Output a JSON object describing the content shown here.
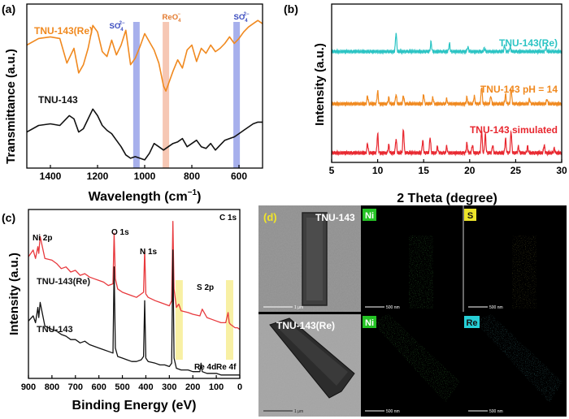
{
  "panels": {
    "a": {
      "letter": "(a)",
      "xlabel": "Wavelength (cm",
      "xlabel_sup": "−1",
      "xlabel_close": ")",
      "ylabel": "Transmittance (a.u.)",
      "xticks": [
        "1400",
        "1200",
        "1000",
        "800",
        "600"
      ],
      "band_labels": {
        "so4_left": "SO",
        "reo4": "ReO",
        "so4_right": "SO"
      },
      "band_subs": {
        "so4_left": "4",
        "reo4": "4",
        "so4_right": "4"
      },
      "band_sups": {
        "so4_left": "2−",
        "reo4": "−",
        "so4_right": "2−"
      },
      "series_labels": {
        "re": "TNU-143(Re)",
        "base": "TNU-143"
      }
    },
    "b": {
      "letter": "(b)",
      "xlabel": "2 Theta (degree)",
      "ylabel": "Intensity (a.u.)",
      "xticks": [
        "5",
        "10",
        "15",
        "20",
        "25",
        "30"
      ],
      "series_labels": {
        "re": "TNU-143(Re)",
        "ph": "TNU-143 pH = 14",
        "sim": "TNU-143 simulated"
      }
    },
    "c": {
      "letter": "(c)",
      "xlabel": "Binding Energy (eV)",
      "ylabel": "Intensity (a.u.)",
      "xticks": [
        "900",
        "800",
        "700",
        "600",
        "500",
        "400",
        "300",
        "200",
        "100",
        "0"
      ],
      "peak_labels": {
        "ni": "Ni 2p",
        "o": "O 1s",
        "n": "N 1s",
        "c": "C 1s",
        "s": "S 2p",
        "re4d": "Re 4d",
        "re4f": "Re 4f"
      },
      "series_labels": {
        "re": "TNU-143(Re)",
        "base": "TNU-143"
      }
    },
    "d": {
      "letter": "(d)",
      "sample_top": "TNU-143",
      "sample_bottom": "TNU-143(Re)",
      "map_tags": {
        "ni_top": "Ni",
        "s_top": "S",
        "ni_bottom": "Ni",
        "re_bottom": "Re"
      },
      "scale_labels": {
        "tem_top": "1 μm",
        "map1": "500 nm",
        "map2": "500 nm",
        "tem_bottom": "1 μm",
        "map3": "500 nm",
        "map4": "500 nm"
      }
    }
  },
  "chart_data": [
    {
      "panel": "a",
      "type": "line",
      "title": "",
      "xlabel": "Wavelength (cm−1)",
      "ylabel": "Transmittance (a.u.)",
      "xlim": [
        1500,
        500
      ],
      "ylim": [
        0,
        10
      ],
      "x_reversed": true,
      "bands": [
        {
          "label": "SO4 2−",
          "x": 1035,
          "color": "#8a95e6"
        },
        {
          "label": "ReO4 −",
          "x": 910,
          "color": "#f3b49b"
        },
        {
          "label": "SO4 2−",
          "x": 610,
          "color": "#8a95e6"
        }
      ],
      "series": [
        {
          "name": "TNU-143(Re)",
          "color": "#f0891f",
          "x": [
            1500,
            1450,
            1400,
            1360,
            1330,
            1300,
            1280,
            1260,
            1240,
            1220,
            1200,
            1180,
            1160,
            1140,
            1120,
            1100,
            1080,
            1060,
            1040,
            1020,
            1000,
            980,
            960,
            940,
            920,
            910,
            900,
            880,
            860,
            840,
            820,
            800,
            780,
            760,
            740,
            720,
            700,
            680,
            660,
            640,
            620,
            600,
            580,
            560,
            540,
            520,
            500
          ],
          "y": [
            7.5,
            7.9,
            8.0,
            7.9,
            6.4,
            7.3,
            5.8,
            6.3,
            7.3,
            8.7,
            8.3,
            7.1,
            6.8,
            7.8,
            6.9,
            7.5,
            8.4,
            6.3,
            6.7,
            7.4,
            8.2,
            7.7,
            7.2,
            6.4,
            5.0,
            4.7,
            5.1,
            5.9,
            6.6,
            6.1,
            7.2,
            7.5,
            6.5,
            7.3,
            7.0,
            7.5,
            7.1,
            7.3,
            7.6,
            8.0,
            7.6,
            7.9,
            8.3,
            8.6,
            8.8,
            9.0,
            8.8
          ]
        },
        {
          "name": "TNU-143",
          "color": "#111111",
          "x": [
            1500,
            1450,
            1400,
            1360,
            1320,
            1300,
            1280,
            1260,
            1240,
            1220,
            1200,
            1180,
            1160,
            1140,
            1120,
            1100,
            1080,
            1060,
            1040,
            1020,
            1000,
            980,
            960,
            940,
            920,
            900,
            880,
            860,
            840,
            820,
            800,
            780,
            760,
            740,
            720,
            700,
            680,
            660,
            640,
            620,
            600,
            580,
            560,
            540,
            520,
            500
          ],
          "y": [
            2.2,
            2.6,
            2.7,
            2.6,
            3.2,
            3.0,
            2.2,
            2.4,
            3.0,
            3.6,
            3.2,
            2.6,
            2.3,
            2.1,
            1.7,
            1.3,
            0.8,
            0.6,
            0.7,
            0.6,
            0.5,
            0.9,
            1.5,
            1.3,
            1.1,
            1.3,
            1.5,
            1.6,
            1.8,
            1.3,
            1.5,
            1.7,
            1.3,
            1.2,
            1.5,
            1.1,
            1.4,
            1.7,
            1.8,
            1.9,
            2.1,
            2.3,
            2.5,
            2.7,
            2.8,
            2.8
          ]
        }
      ]
    },
    {
      "panel": "b",
      "type": "line",
      "title": "",
      "xlabel": "2 Theta (degree)",
      "ylabel": "Intensity (a.u.)",
      "xlim": [
        5,
        30
      ],
      "ylim": [
        0,
        10
      ],
      "series": [
        {
          "name": "TNU-143(Re)",
          "color": "#2bc4c4",
          "baseline": 7.0,
          "peaks": [
            [
              12.0,
              1.2
            ],
            [
              15.8,
              0.6
            ],
            [
              17.8,
              0.5
            ],
            [
              19.8,
              0.3
            ],
            [
              21.6,
              0.2
            ],
            [
              23.8,
              0.4
            ],
            [
              24.4,
              0.3
            ],
            [
              28.3,
              0.3
            ]
          ]
        },
        {
          "name": "TNU-143 pH = 14",
          "color": "#f0891f",
          "baseline": 3.7,
          "peaks": [
            [
              8.9,
              0.5
            ],
            [
              10.0,
              0.8
            ],
            [
              11.2,
              0.4
            ],
            [
              12.0,
              0.6
            ],
            [
              12.8,
              0.5
            ],
            [
              15.0,
              0.6
            ],
            [
              16.0,
              0.4
            ],
            [
              17.5,
              0.3
            ],
            [
              19.7,
              0.4
            ],
            [
              20.5,
              0.5
            ],
            [
              21.3,
              1.1
            ],
            [
              22.3,
              0.5
            ],
            [
              23.9,
              0.6
            ],
            [
              24.5,
              1.0
            ],
            [
              26.5,
              0.3
            ],
            [
              28.4,
              0.3
            ]
          ]
        },
        {
          "name": "TNU-143 simulated",
          "color": "#e8272f",
          "baseline": 0.6,
          "peaks": [
            [
              8.9,
              0.6
            ],
            [
              10.0,
              1.2
            ],
            [
              11.2,
              0.5
            ],
            [
              12.0,
              0.9
            ],
            [
              12.8,
              1.5
            ],
            [
              14.9,
              0.8
            ],
            [
              15.7,
              1.0
            ],
            [
              16.5,
              0.4
            ],
            [
              17.5,
              0.4
            ],
            [
              19.7,
              0.6
            ],
            [
              20.3,
              0.5
            ],
            [
              21.3,
              1.4
            ],
            [
              21.7,
              1.2
            ],
            [
              22.5,
              0.5
            ],
            [
              23.9,
              0.9
            ],
            [
              24.5,
              1.4
            ],
            [
              25.3,
              0.4
            ],
            [
              26.3,
              0.4
            ],
            [
              28.1,
              0.5
            ],
            [
              29.2,
              0.3
            ]
          ]
        }
      ]
    },
    {
      "panel": "c",
      "type": "line",
      "title": "",
      "xlabel": "Binding Energy (eV)",
      "ylabel": "Intensity (a.u.)",
      "xlim": [
        900,
        0
      ],
      "ylim": [
        0,
        10
      ],
      "x_reversed": true,
      "bands": [
        {
          "label": "Re 4d",
          "x": 260,
          "color": "#f7ee9a"
        },
        {
          "label": "Re 4f",
          "x": 45,
          "color": "#f7ee9a"
        }
      ],
      "series": [
        {
          "name": "TNU-143(Re)",
          "color": "#e8393d",
          "x": [
            900,
            880,
            870,
            860,
            856,
            850,
            830,
            800,
            780,
            760,
            740,
            720,
            700,
            680,
            660,
            640,
            620,
            600,
            580,
            560,
            540,
            535,
            530,
            520,
            500,
            480,
            460,
            440,
            420,
            410,
            405,
            400,
            390,
            360,
            340,
            320,
            300,
            290,
            285,
            280,
            270,
            260,
            250,
            220,
            200,
            170,
            160,
            140,
            120,
            100,
            80,
            60,
            50,
            45,
            40,
            30,
            20,
            10,
            0
          ],
          "y": [
            7.2,
            7.6,
            7.1,
            7.8,
            7.4,
            8.4,
            7.1,
            7.0,
            6.8,
            6.5,
            6.6,
            6.3,
            6.4,
            6.1,
            6.2,
            6.0,
            5.9,
            5.8,
            5.7,
            5.5,
            5.6,
            8.6,
            5.9,
            5.3,
            5.1,
            5.0,
            4.9,
            4.8,
            5.0,
            5.1,
            7.6,
            5.0,
            4.8,
            4.6,
            4.5,
            4.4,
            4.3,
            4.6,
            9.3,
            5.3,
            4.2,
            4.4,
            4.0,
            3.9,
            3.8,
            3.7,
            4.1,
            3.6,
            3.5,
            3.4,
            3.3,
            3.3,
            3.9,
            3.3,
            3.2,
            3.1,
            3.0,
            3.0,
            2.9
          ]
        },
        {
          "name": "TNU-143",
          "color": "#111111",
          "x": [
            900,
            880,
            870,
            860,
            856,
            850,
            830,
            800,
            780,
            760,
            740,
            720,
            700,
            680,
            660,
            640,
            620,
            600,
            580,
            560,
            540,
            535,
            530,
            520,
            500,
            480,
            460,
            440,
            420,
            410,
            405,
            400,
            390,
            360,
            340,
            320,
            300,
            290,
            285,
            280,
            270,
            250,
            220,
            200,
            170,
            165,
            160,
            140,
            120,
            100,
            80,
            60,
            40,
            20,
            0
          ],
          "y": [
            3.4,
            3.7,
            3.3,
            4.2,
            3.6,
            4.5,
            3.1,
            2.9,
            2.8,
            2.6,
            2.5,
            2.3,
            2.3,
            2.1,
            2.2,
            2.0,
            1.9,
            1.8,
            1.7,
            1.6,
            1.5,
            6.6,
            1.8,
            1.3,
            1.2,
            1.1,
            1.0,
            1.0,
            1.1,
            1.3,
            4.6,
            1.2,
            1.0,
            0.9,
            0.8,
            0.8,
            0.7,
            0.9,
            7.6,
            1.2,
            0.6,
            0.5,
            0.5,
            0.4,
            0.4,
            0.9,
            0.4,
            0.3,
            0.3,
            0.3,
            0.2,
            0.2,
            0.2,
            0.2,
            0.2
          ]
        }
      ]
    }
  ]
}
